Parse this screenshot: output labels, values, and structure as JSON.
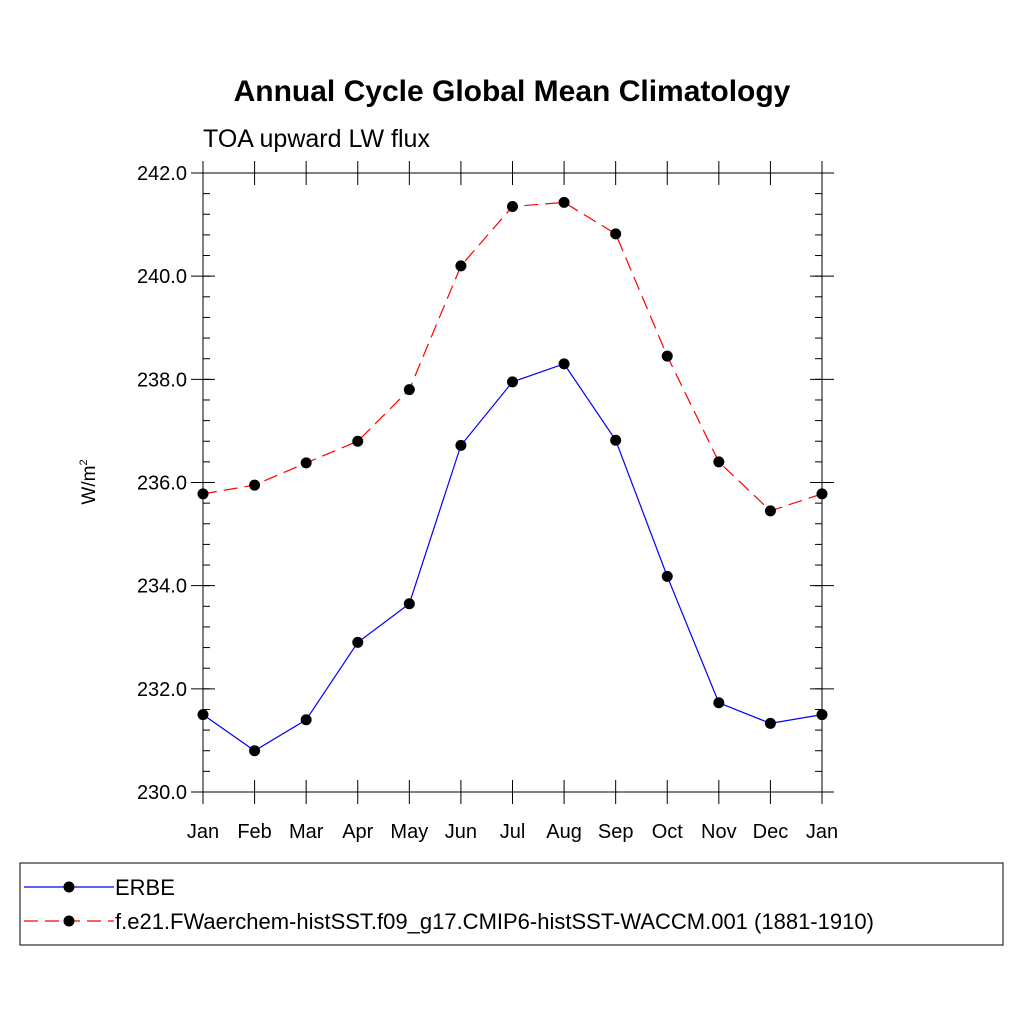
{
  "chart_data": {
    "type": "line",
    "title": "Annual Cycle Global Mean Climatology",
    "subtitle": "TOA upward LW flux",
    "xlabel": "",
    "ylabel": "W/m",
    "ylabel_superscript": "2",
    "categories": [
      "Jan",
      "Feb",
      "Mar",
      "Apr",
      "May",
      "Jun",
      "Jul",
      "Aug",
      "Sep",
      "Oct",
      "Nov",
      "Dec",
      "Jan"
    ],
    "ylim": [
      230.0,
      242.0
    ],
    "yticks": [
      "230.0",
      "232.0",
      "234.0",
      "236.0",
      "238.0",
      "240.0",
      "242.0"
    ],
    "grid": false,
    "legend_position": "bottom",
    "series": [
      {
        "name": "ERBE",
        "color": "#0000ff",
        "dash": "solid",
        "marker": "circle",
        "values": [
          231.5,
          230.8,
          231.4,
          232.9,
          233.65,
          236.72,
          237.95,
          238.3,
          236.82,
          234.18,
          231.73,
          231.33,
          231.5
        ]
      },
      {
        "name": "f.e21.FWaerchem-histSST.f09_g17.CMIP6-histSST-WACCM.001 (1881-1910)",
        "color": "#ff0000",
        "dash": "dashed",
        "marker": "circle",
        "values": [
          235.78,
          235.95,
          236.38,
          236.8,
          237.8,
          240.2,
          241.35,
          241.43,
          240.82,
          238.45,
          236.4,
          235.45,
          235.78
        ]
      }
    ]
  }
}
